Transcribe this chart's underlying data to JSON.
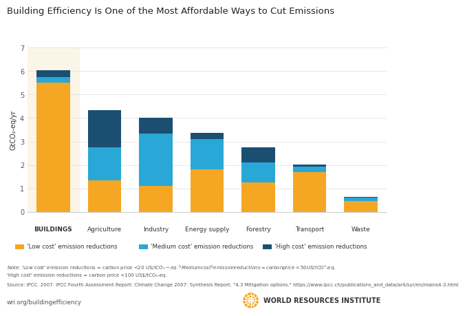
{
  "title": "Building Efficiency Is One of the Most Affordable Ways to Cut Emissions",
  "ylabel": "GtCO₂-eq/yr",
  "categories": [
    "BUILDINGS",
    "Agriculture",
    "Industry",
    "Energy supply",
    "Forestry",
    "Transport",
    "Waste"
  ],
  "low_cost": [
    5.5,
    1.35,
    1.1,
    1.8,
    1.25,
    1.7,
    0.47
  ],
  "medium_cost": [
    0.25,
    1.4,
    2.25,
    1.3,
    0.85,
    0.22,
    0.13
  ],
  "high_cost": [
    0.28,
    1.58,
    0.65,
    0.28,
    0.65,
    0.1,
    0.05
  ],
  "color_low": "#F5A623",
  "color_medium": "#29A8D8",
  "color_high": "#1B4F72",
  "highlight_color": "#FBF5E8",
  "ylim": [
    0,
    7
  ],
  "yticks": [
    0,
    1,
    2,
    3,
    4,
    5,
    6,
    7
  ],
  "legend_labels": [
    "'Low cost' emission reductions",
    "'Medium cost' emission reductions",
    "'High cost' emission reductions"
  ],
  "note_line1": "Note: 'Low cost' emission reductions = carbon price <20 US$/tCO₂-eq. 'Medium cost' emission reductions =  carbon price <50 US$/tCO²-eq.",
  "note_line2": "'High cost' emission reductions = carbon price <100 US$/tCO₂-eq.",
  "source_line": "Source: IPCC. 2007. IPCC Fourth Assessment Report: Climate Change 2007: Synthesis Report. \"4.3 Mitigation options.\" https://www.ipcc.ch/publications_and_data/ar4/syr/en/mains4-3.html",
  "url": "wri.org/buildingefficiency",
  "wri_label": "WORLD RESOURCES INSTITUTE",
  "bg_color": "#FFFFFF",
  "wri_color": "#F5A623"
}
